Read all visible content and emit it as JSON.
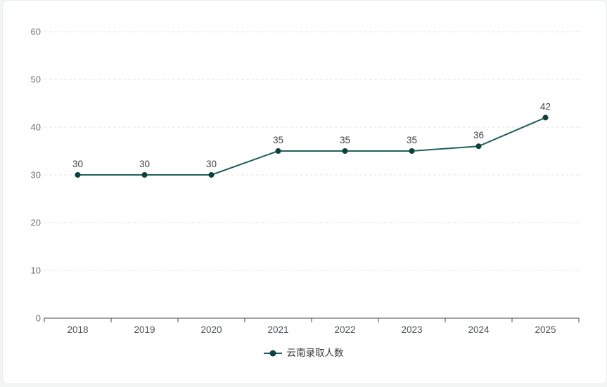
{
  "chart_data": {
    "type": "line",
    "title": "",
    "categories": [
      "2018",
      "2019",
      "2020",
      "2021",
      "2022",
      "2023",
      "2024",
      "2025"
    ],
    "series": [
      {
        "name": "云南录取人数",
        "values": [
          30,
          30,
          30,
          35,
          35,
          35,
          36,
          42
        ],
        "line_color": "#20605a",
        "marker_color": "#0c423e"
      }
    ],
    "xlabel": "",
    "ylabel": "",
    "ylim": [
      0,
      60
    ],
    "yticks": [
      0,
      10,
      20,
      30,
      40,
      50,
      60
    ],
    "grid": "horizontal-dashed",
    "show_data_labels": true,
    "legend_position": "bottom-center"
  },
  "legend": {
    "items": [
      {
        "label": "云南录取人数"
      }
    ]
  },
  "styles": {
    "grid_color": "#e4e6e6",
    "axis_color": "#45484b",
    "y_label_color": "#6d7175",
    "x_label_color": "#4c5055",
    "data_label_color": "#3f4347",
    "legend_text_color": "#333639",
    "card_background": "#ffffff",
    "page_background": "#f3f5f5",
    "card_border": "#eaeded"
  }
}
